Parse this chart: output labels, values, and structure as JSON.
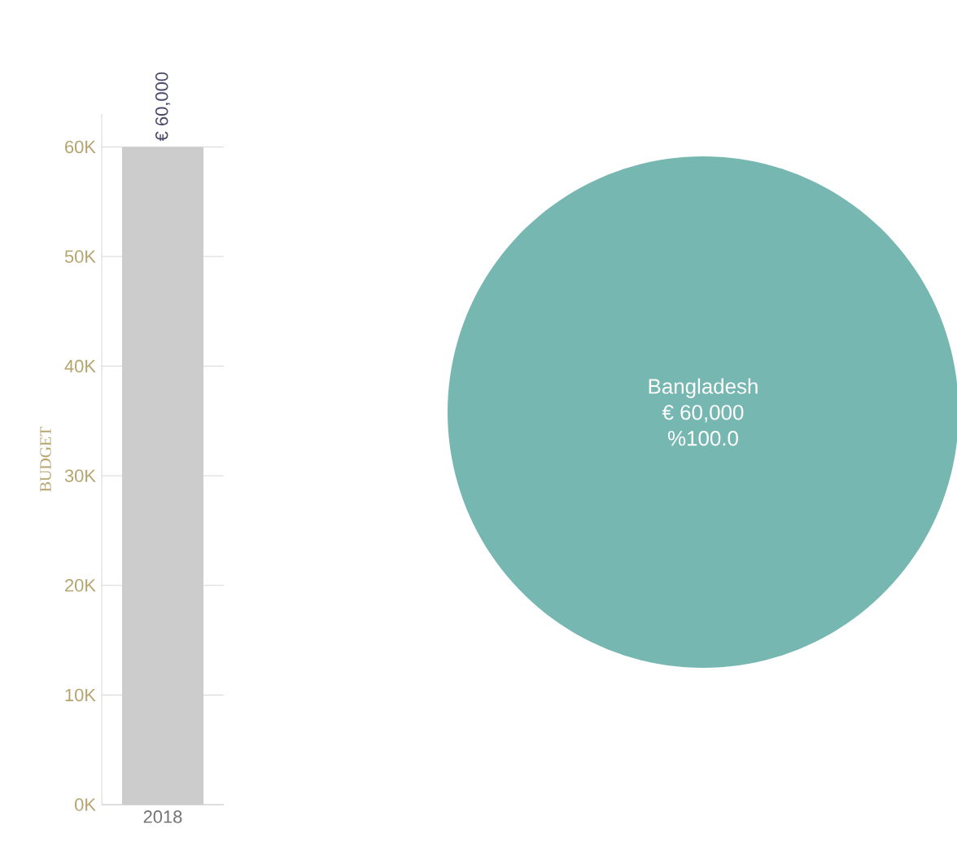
{
  "chart_data": [
    {
      "type": "bar",
      "ylabel": "BUDGET",
      "categories": [
        "2018"
      ],
      "values": [
        60000
      ],
      "value_labels": [
        "€ 60,000"
      ],
      "color": "#cccccc",
      "ylim": [
        0,
        63000
      ],
      "yticks": [
        {
          "value": 0,
          "label": "0K"
        },
        {
          "value": 10000,
          "label": "10K"
        },
        {
          "value": 20000,
          "label": "20K"
        },
        {
          "value": 30000,
          "label": "30K"
        },
        {
          "value": 40000,
          "label": "40K"
        },
        {
          "value": 50000,
          "label": "50K"
        },
        {
          "value": 60000,
          "label": "60K"
        }
      ],
      "grid": "y"
    },
    {
      "type": "pie",
      "categories": [
        "Bangladesh"
      ],
      "values": [
        60000
      ],
      "value_labels": [
        "€ 60,000"
      ],
      "colors": [
        "#76b7b2"
      ],
      "annotations": [
        "%100.0"
      ]
    }
  ]
}
